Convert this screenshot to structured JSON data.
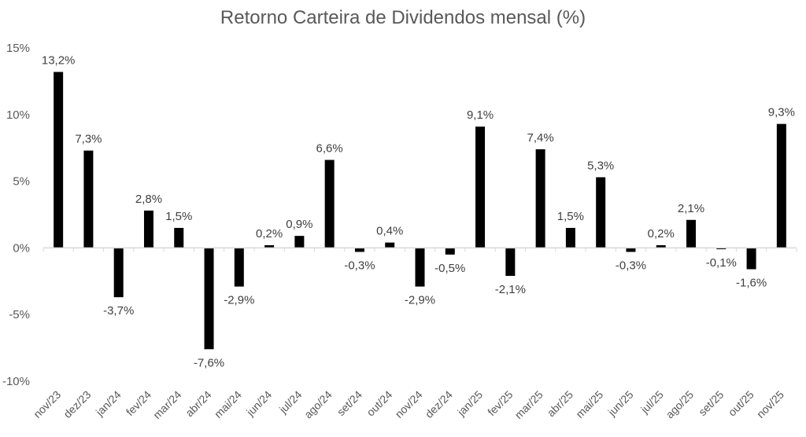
{
  "chart_data": {
    "type": "bar",
    "title": "Retorno Carteira de Dividendos mensal (%)",
    "xlabel": "",
    "ylabel": "",
    "ylim": [
      -10,
      15
    ],
    "yticks": [
      15,
      10,
      5,
      0,
      -5,
      -10
    ],
    "ytick_labels": [
      "15%",
      "10%",
      "5%",
      "0%",
      "-5%",
      "-10%"
    ],
    "grid": false,
    "legend": null,
    "bar_color": "#000000",
    "categories": [
      "nov/23",
      "dez/23",
      "jan/24",
      "fev/24",
      "mar/24",
      "abr/24",
      "mai/24",
      "jun/24",
      "jul/24",
      "ago/24",
      "set/24",
      "out/24",
      "nov/24",
      "dez/24",
      "jan/25",
      "fev/25",
      "mar/25",
      "abr/25",
      "mai/25",
      "jun/25",
      "jul/25",
      "ago/25",
      "set/25",
      "out/25",
      "nov/25"
    ],
    "values": [
      13.2,
      7.3,
      -3.7,
      2.8,
      1.5,
      -7.6,
      -2.9,
      0.2,
      0.9,
      6.6,
      -0.3,
      0.4,
      -2.9,
      -0.5,
      9.1,
      -2.1,
      7.4,
      1.5,
      5.3,
      -0.3,
      0.2,
      2.1,
      -0.1,
      -1.6,
      9.3
    ],
    "data_labels": [
      "13,2%",
      "7,3%",
      "-3,7%",
      "2,8%",
      "1,5%",
      "-7,6%",
      "-2,9%",
      "0,2%",
      "0,9%",
      "6,6%",
      "-0,3%",
      "0,4%",
      "-2,9%",
      "-0,5%",
      "9,1%",
      "-2,1%",
      "7,4%",
      "1,5%",
      "5,3%",
      "-0,3%",
      "0,2%",
      "2,1%",
      "-0,1%",
      "-1,6%",
      "9,3%"
    ]
  }
}
